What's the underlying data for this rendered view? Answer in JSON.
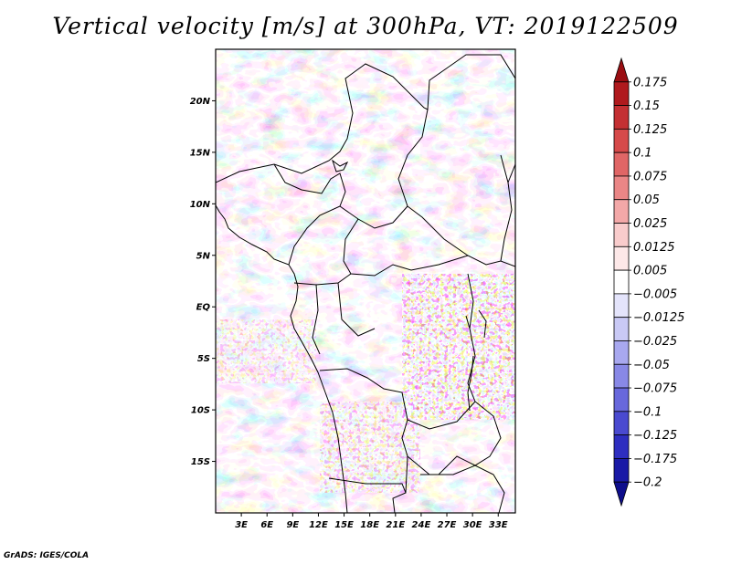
{
  "title": "Vertical velocity [m/s] at 300hPa, VT: 2019122509",
  "credit": "GrADS: IGES/COLA",
  "map": {
    "lat_labels": [
      "20N",
      "15N",
      "10N",
      "5N",
      "EQ",
      "5S",
      "10S",
      "15S"
    ],
    "lat_values": [
      20,
      15,
      10,
      5,
      0,
      -5,
      -10,
      -15
    ],
    "lon_labels": [
      "3E",
      "6E",
      "9E",
      "12E",
      "15E",
      "18E",
      "21E",
      "24E",
      "27E",
      "30E",
      "33E"
    ],
    "lon_values": [
      3,
      6,
      9,
      12,
      15,
      18,
      21,
      24,
      27,
      30,
      33
    ],
    "lon_range": [
      0,
      35
    ],
    "lat_range": [
      -20,
      25
    ]
  },
  "colorbar": {
    "labels": [
      "0.175",
      "0.15",
      "0.125",
      "0.1",
      "0.075",
      "0.05",
      "0.025",
      "0.0125",
      "0.005",
      "−0.005",
      "−0.0125",
      "−0.025",
      "−0.05",
      "−0.075",
      "−0.1",
      "−0.125",
      "−0.175",
      "−0.2"
    ],
    "colors": [
      "#9a0e12",
      "#b01a1e",
      "#c43033",
      "#d64a4a",
      "#e06666",
      "#ea8686",
      "#f3a8a8",
      "#f9cccc",
      "#fde8e8",
      "#ffffff",
      "#e4e4fb",
      "#c9c9f5",
      "#a8a8ef",
      "#8888e6",
      "#6868dc",
      "#4a4ad0",
      "#2e2ec0",
      "#1a1aa6",
      "#0e0e8c"
    ]
  },
  "colors": {
    "field_negative": "#8a8ae4",
    "field_positive": "#f2a4a4",
    "field_neutral": "#ffffff",
    "coastline": "#000000"
  }
}
